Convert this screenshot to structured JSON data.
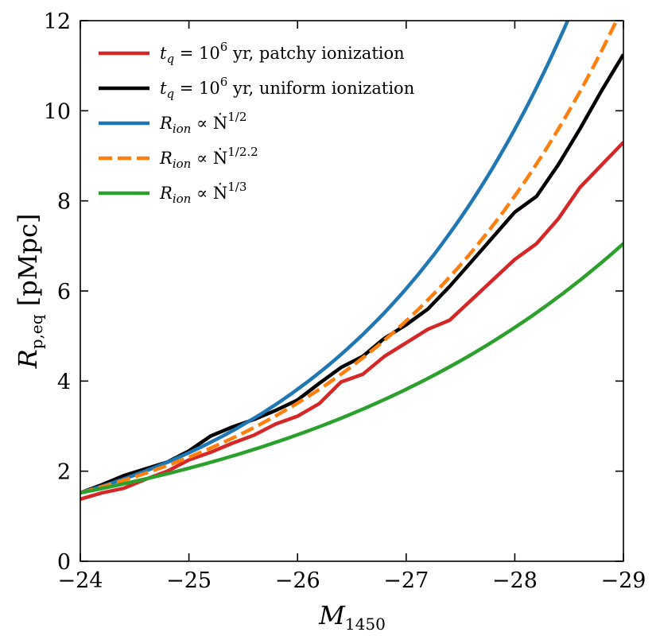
{
  "chart_data": {
    "type": "line",
    "title": "",
    "xlabel": "M1450",
    "ylabel": "R_p,eq [pMpc]",
    "xlim": [
      -24,
      -29
    ],
    "ylim": [
      0,
      12
    ],
    "x_ticks": [
      -24,
      -25,
      -26,
      -27,
      -28,
      -29
    ],
    "x_tick_labels": [
      "−24",
      "−25",
      "−26",
      "−27",
      "−28",
      "−29"
    ],
    "y_ticks": [
      0,
      2,
      4,
      6,
      8,
      10,
      12
    ],
    "y_tick_labels": [
      "0",
      "2",
      "4",
      "6",
      "8",
      "10",
      "12"
    ],
    "grid": false,
    "legend_position": "top-left",
    "series": [
      {
        "name": "t_q = 10^6 yr, patchy ionization",
        "legend": {
          "pre": "t",
          "sub": "q",
          "mid": " = 10",
          "sup": "6",
          "post": " yr, patchy ionization"
        },
        "color": "#d62728",
        "dash": "solid",
        "x": [
          -24,
          -24.2,
          -24.4,
          -24.6,
          -24.8,
          -25,
          -25.2,
          -25.4,
          -25.6,
          -25.8,
          -26,
          -26.2,
          -26.4,
          -26.6,
          -26.8,
          -27,
          -27.2,
          -27.4,
          -27.6,
          -27.8,
          -28,
          -28.2,
          -28.4,
          -28.6,
          -28.8,
          -29
        ],
        "y": [
          1.38,
          1.52,
          1.62,
          1.82,
          2.0,
          2.25,
          2.42,
          2.62,
          2.8,
          3.05,
          3.22,
          3.5,
          3.98,
          4.15,
          4.55,
          4.85,
          5.15,
          5.35,
          5.8,
          6.25,
          6.7,
          7.05,
          7.6,
          8.3,
          8.8,
          9.3
        ]
      },
      {
        "name": "t_q = 10^6 yr, uniform ionization",
        "legend": {
          "pre": "t",
          "sub": "q",
          "mid": " = 10",
          "sup": "6",
          "post": " yr, uniform ionization"
        },
        "color": "#000000",
        "dash": "solid",
        "x": [
          -24,
          -24.2,
          -24.4,
          -24.6,
          -24.8,
          -25,
          -25.2,
          -25.4,
          -25.6,
          -25.8,
          -26,
          -26.2,
          -26.4,
          -26.6,
          -26.8,
          -27,
          -27.2,
          -27.4,
          -27.6,
          -27.8,
          -28,
          -28.2,
          -28.4,
          -28.6,
          -28.8,
          -29
        ],
        "y": [
          1.52,
          1.7,
          1.9,
          2.05,
          2.2,
          2.45,
          2.78,
          2.98,
          3.15,
          3.35,
          3.58,
          3.95,
          4.3,
          4.55,
          4.95,
          5.25,
          5.6,
          6.1,
          6.65,
          7.2,
          7.75,
          8.1,
          8.8,
          9.6,
          10.45,
          11.25
        ]
      },
      {
        "name": "R_ion ∝ Ṅ^(1/2)",
        "legend": {
          "pre": "R",
          "sub": "ion",
          "mid": " ∝ Ṅ",
          "sup": "1/2",
          "post": ""
        },
        "color": "#1f77b4",
        "dash": "solid",
        "formula": {
          "y0": 1.52,
          "exponent": 0.5
        },
        "x": [
          -24,
          -25,
          -26,
          -27,
          -28,
          -28.5
        ],
        "y": [
          1.52,
          2.41,
          3.82,
          6.05,
          9.59,
          12.07
        ]
      },
      {
        "name": "R_ion ∝ Ṅ^(1/2.2)",
        "legend": {
          "pre": "R",
          "sub": "ion",
          "mid": " ∝ Ṅ",
          "sup": "1/2.2",
          "post": ""
        },
        "color": "#ff7f0e",
        "dash": "dashed",
        "formula": {
          "y0": 1.52,
          "exponent": 0.4545
        },
        "x": [
          -24,
          -25,
          -26,
          -27,
          -28,
          -29
        ],
        "y": [
          1.52,
          2.32,
          3.53,
          5.37,
          8.18,
          12.45
        ]
      },
      {
        "name": "R_ion ∝ Ṅ^(1/3)",
        "legend": {
          "pre": "R",
          "sub": "ion",
          "mid": " ∝ Ṅ",
          "sup": "1/3",
          "post": ""
        },
        "color": "#2ca02c",
        "dash": "solid",
        "formula": {
          "y0": 1.52,
          "exponent": 0.3333
        },
        "x": [
          -24,
          -25,
          -26,
          -27,
          -28,
          -29
        ],
        "y": [
          1.52,
          2.08,
          2.83,
          3.83,
          5.22,
          7.05
        ]
      }
    ]
  }
}
